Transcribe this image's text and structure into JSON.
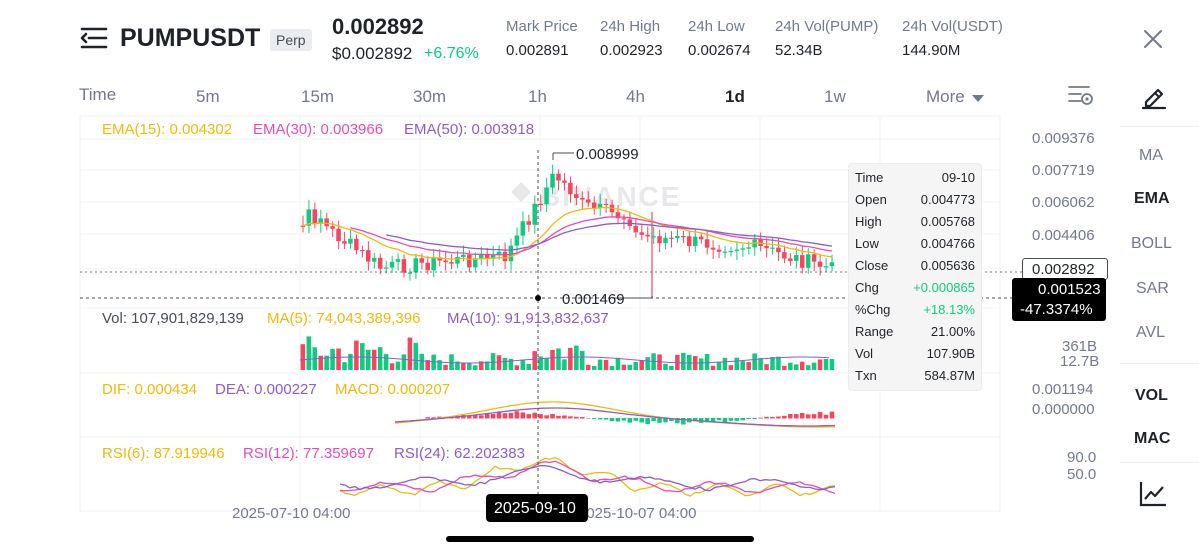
{
  "header": {
    "symbol": "PUMPUSDT",
    "badge": "Perp",
    "last_price": "0.002892",
    "last_price_usd": "$0.002892",
    "change_pct": "+6.76%",
    "stats": [
      {
        "label": "Mark Price",
        "value": "0.002891"
      },
      {
        "label": "24h High",
        "value": "0.002923"
      },
      {
        "label": "24h Low",
        "value": "0.002674"
      },
      {
        "label": "24h Vol(PUMP)",
        "value": "52.34B"
      },
      {
        "label": "24h Vol(USDT)",
        "value": "144.90M"
      }
    ]
  },
  "timeframes": {
    "items": [
      "Time",
      "5m",
      "15m",
      "30m",
      "1h",
      "4h",
      "1d",
      "1w",
      "More"
    ],
    "active": "1d"
  },
  "indicators_panel": {
    "items": [
      "MA",
      "EMA",
      "BOLL",
      "SAR",
      "AVL",
      "VOL",
      "MAC"
    ],
    "active": [
      "EMA",
      "VOL",
      "MAC"
    ]
  },
  "legends": {
    "ema": [
      "EMA(15): 0.004302",
      "EMA(30): 0.003966",
      "EMA(50): 0.003918"
    ],
    "vol": [
      "Vol: 107,901,829,139",
      "MA(5): 74,043,389,396",
      "MA(10): 91,913,832,637"
    ],
    "macd": [
      "DIF: 0.000434",
      "DEA: 0.000227",
      "MACD: 0.000207"
    ],
    "rsi": [
      "RSI(6): 87.919946",
      "RSI(12): 77.359697",
      "RSI(24): 62.202383"
    ]
  },
  "price_axis": [
    "0.009376",
    "0.007719",
    "0.006062",
    "0.004406",
    "0.002892"
  ],
  "vol_axis": [
    "361B",
    "12.7B"
  ],
  "macd_axis": [
    "0.001194",
    "0.000000"
  ],
  "rsi_axis": [
    "90.0",
    "50.0"
  ],
  "crosshair": {
    "price": "0.001523",
    "pct": "-47.3374%",
    "date": "2025-09-10"
  },
  "annotations": {
    "high": "0.008999",
    "low": "0.001469"
  },
  "watermark": "BINANCE",
  "x_axis": [
    "2025-07-10 04:00",
    "2025-10-07 04:00"
  ],
  "tooltip": [
    {
      "k": "Time",
      "v": "09-10"
    },
    {
      "k": "Open",
      "v": "0.004773"
    },
    {
      "k": "High",
      "v": "0.005768"
    },
    {
      "k": "Low",
      "v": "0.004766"
    },
    {
      "k": "Close",
      "v": "0.005636"
    },
    {
      "k": "Chg",
      "v": "+0.000865"
    },
    {
      "k": "%Chg",
      "v": "+18.13%"
    },
    {
      "k": "Range",
      "v": "21.00%"
    },
    {
      "k": "Vol",
      "v": "107.90B"
    },
    {
      "k": "Txn",
      "v": "584.87M"
    }
  ],
  "colors": {
    "up": "#0ecb81",
    "down": "#f6465d",
    "ema15": "#f0b90b",
    "ema30": "#e64bb7",
    "ema50": "#8c5cc9"
  }
}
